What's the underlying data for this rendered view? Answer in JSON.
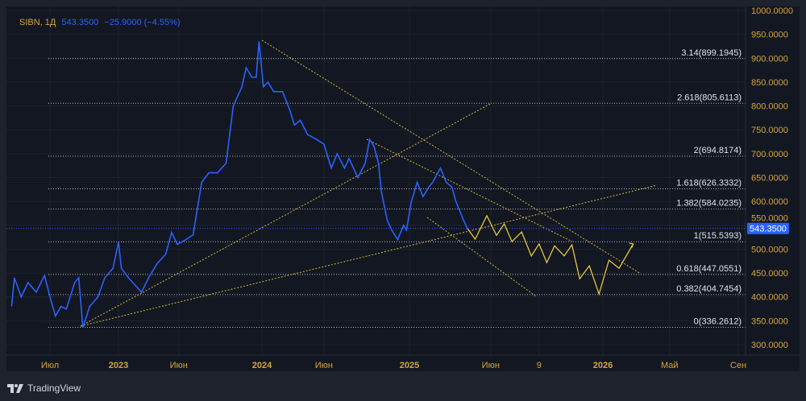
{
  "legend": {
    "symbol": "SIBN, 1Д",
    "price": "543.3500",
    "change": "−25.9000 (−4.55%)"
  },
  "brand": "TradingView",
  "chart_data": {
    "type": "line",
    "title": "SIBN, 1Д",
    "ylim": [
      300,
      1000
    ],
    "y_ticks": [
      "1000.0000",
      "950.0000",
      "900.0000",
      "850.0000",
      "800.0000",
      "750.0000",
      "700.0000",
      "650.0000",
      "600.0000",
      "550.0000",
      "500.0000",
      "450.0000",
      "400.0000",
      "350.0000",
      "300.0000"
    ],
    "y_tick_values": [
      1000,
      950,
      900,
      850,
      800,
      750,
      700,
      650,
      600,
      550,
      500,
      450,
      400,
      350,
      300
    ],
    "x_ticks": [
      {
        "label": "Июл",
        "t": 2022.5
      },
      {
        "label": "2023",
        "t": 2023.0
      },
      {
        "label": "Июн",
        "t": 2023.42
      },
      {
        "label": "2024",
        "t": 2024.0
      },
      {
        "label": "Июн",
        "t": 2024.42
      },
      {
        "label": "2025",
        "t": 2025.0
      },
      {
        "label": "Июн",
        "t": 2025.42
      },
      {
        "label": "9",
        "t": 2025.67
      },
      {
        "label": "2026",
        "t": 2026.0
      },
      {
        "label": "Май",
        "t": 2026.33
      },
      {
        "label": "Сен",
        "t": 2026.67
      }
    ],
    "last_price": {
      "label": "543.3500",
      "value": 543.35
    },
    "colors": {
      "price": "#2962ff",
      "forecast": "#f0d43a",
      "fib": "#b2b5be",
      "axis": "#d4a53a"
    },
    "fib_levels": [
      {
        "label": "3.14(899.1945)",
        "value": 899.1945
      },
      {
        "label": "2.618(805.6113)",
        "value": 805.6113
      },
      {
        "label": "2(694.8174)",
        "value": 694.8174
      },
      {
        "label": "1.618(626.3332)",
        "value": 626.3332
      },
      {
        "label": "1.382(584.0235)",
        "value": 584.0235
      },
      {
        "label": "1(515.5393)",
        "value": 515.5393
      },
      {
        "label": "0.618(447.0551)",
        "value": 447.0551
      },
      {
        "label": "0.382(404.7454)",
        "value": 404.7454
      },
      {
        "label": "0(336.2612)",
        "value": 336.2612
      }
    ],
    "series": [
      {
        "name": "SIBN",
        "t": [
          2022.22,
          2022.24,
          2022.29,
          2022.34,
          2022.4,
          2022.46,
          2022.5,
          2022.54,
          2022.58,
          2022.62,
          2022.68,
          2022.71,
          2022.74,
          2022.79,
          2022.85,
          2022.9,
          2022.96,
          2023.0,
          2023.02,
          2023.07,
          2023.13,
          2023.16,
          2023.21,
          2023.27,
          2023.33,
          2023.37,
          2023.41,
          2023.47,
          2023.52,
          2023.58,
          2023.63,
          2023.69,
          2023.75,
          2023.8,
          2023.86,
          2023.89,
          2023.93,
          2023.96,
          2023.98,
          2024.01,
          2024.04,
          2024.08,
          2024.14,
          2024.19,
          2024.22,
          2024.26,
          2024.31,
          2024.37,
          2024.42,
          2024.47,
          2024.51,
          2024.56,
          2024.59,
          2024.65,
          2024.7,
          2024.73,
          2024.76,
          2024.79,
          2024.81,
          2024.85,
          2024.88,
          2024.92,
          2024.96,
          2024.98,
          2025.01,
          2025.04,
          2025.07,
          2025.1,
          2025.12,
          2025.16,
          2025.19,
          2025.22,
          2025.24,
          2025.26,
          2025.28,
          2025.3
        ],
        "values": [
          380,
          440,
          400,
          430,
          410,
          445,
          400,
          360,
          380,
          375,
          430,
          440,
          336,
          380,
          400,
          440,
          460,
          515,
          460,
          440,
          420,
          410,
          440,
          470,
          490,
          535,
          510,
          520,
          530,
          640,
          660,
          660,
          680,
          800,
          840,
          880,
          860,
          860,
          935,
          840,
          850,
          830,
          830,
          790,
          760,
          770,
          740,
          730,
          720,
          670,
          700,
          670,
          690,
          650,
          680,
          730,
          715,
          680,
          620,
          560,
          540,
          520,
          550,
          540,
          600,
          640,
          610,
          630,
          640,
          670,
          640,
          630,
          600,
          580,
          560,
          543
        ]
      },
      {
        "name": "forecast",
        "t": [
          2025.3,
          2025.34,
          2025.4,
          2025.45,
          2025.49,
          2025.53,
          2025.58,
          2025.63,
          2025.67,
          2025.71,
          2025.75,
          2025.8,
          2025.84,
          2025.88,
          2025.93,
          2025.98,
          2026.03,
          2026.08,
          2026.15
        ],
        "values": [
          543,
          521,
          570,
          529,
          553,
          516,
          536,
          486,
          511,
          472,
          507,
          486,
          509,
          438,
          465,
          406,
          477,
          460,
          511
        ]
      }
    ]
  }
}
